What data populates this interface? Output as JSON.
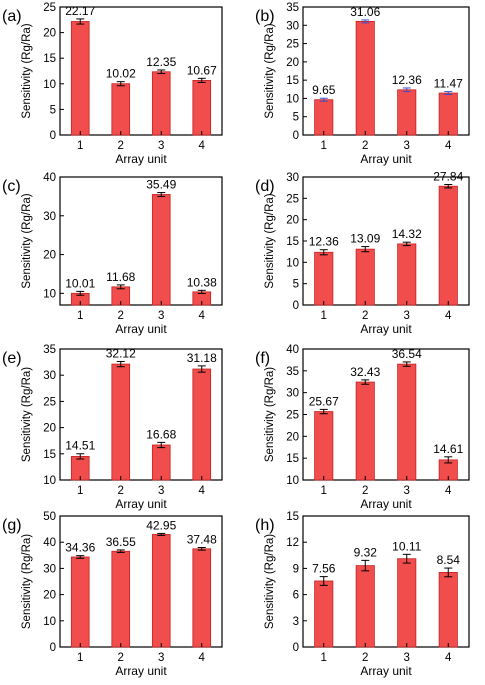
{
  "chart_data": [
    {
      "type": "bar",
      "panel_label": "(a)",
      "categories": [
        "1",
        "2",
        "3",
        "4"
      ],
      "values": [
        22.17,
        10.02,
        12.35,
        10.67
      ],
      "errors": [
        0.5,
        0.4,
        0.35,
        0.4
      ],
      "value_labels": [
        "22.17",
        "10.02",
        "12.35",
        "10.67"
      ],
      "ylim": [
        0,
        25
      ],
      "yticks": [
        0,
        5,
        10,
        15,
        20,
        25
      ],
      "xlabel": "Array unit",
      "ylabel": "Sensitivity (Rg/Ra)",
      "grid": false
    },
    {
      "type": "bar",
      "panel_label": "(b)",
      "categories": [
        "1",
        "2",
        "3",
        "4"
      ],
      "values": [
        9.65,
        31.06,
        12.36,
        11.47
      ],
      "errors": [
        0.4,
        0.4,
        0.5,
        0.4
      ],
      "value_labels": [
        "9.65",
        "31.06",
        "12.36",
        "11.47"
      ],
      "ylim": [
        0,
        35
      ],
      "yticks": [
        0,
        5,
        10,
        15,
        20,
        25,
        30,
        35
      ],
      "xlabel": "Array unit",
      "ylabel": "Sensitivity (Rg/Ra)",
      "grid": false
    },
    {
      "type": "bar",
      "panel_label": "(c)",
      "categories": [
        "1",
        "2",
        "3",
        "4"
      ],
      "values": [
        10.01,
        11.68,
        35.49,
        10.38
      ],
      "errors": [
        0.5,
        0.5,
        0.5,
        0.4
      ],
      "value_labels": [
        "10.01",
        "11.68",
        "35.49",
        "10.38"
      ],
      "ylim": [
        7,
        40
      ],
      "yticks": [
        10,
        20,
        30,
        40
      ],
      "xlabel": "Array unit",
      "ylabel": "Sensitivity (Rg/Ra)",
      "grid": false
    },
    {
      "type": "bar",
      "panel_label": "(d)",
      "categories": [
        "1",
        "2",
        "3",
        "4"
      ],
      "values": [
        12.36,
        13.09,
        14.32,
        27.84
      ],
      "errors": [
        0.6,
        0.6,
        0.4,
        0.4
      ],
      "value_labels": [
        "12.36",
        "13.09",
        "14.32",
        "27.84"
      ],
      "ylim": [
        0,
        30
      ],
      "yticks": [
        0,
        5,
        10,
        15,
        20,
        25,
        30
      ],
      "xlabel": "Array unit",
      "ylabel": "Sensitivity (Rg/Ra)",
      "grid": false
    },
    {
      "type": "bar",
      "panel_label": "(e)",
      "categories": [
        "1",
        "2",
        "3",
        "4"
      ],
      "values": [
        14.51,
        32.12,
        16.68,
        31.18
      ],
      "errors": [
        0.5,
        0.5,
        0.5,
        0.6
      ],
      "value_labels": [
        "14.51",
        "32.12",
        "16.68",
        "31.18"
      ],
      "ylim": [
        10,
        35
      ],
      "yticks": [
        10,
        15,
        20,
        25,
        30,
        35
      ],
      "xlabel": "Array unit",
      "ylabel": "Sensitivity (Rg/Ra)",
      "grid": false
    },
    {
      "type": "bar",
      "panel_label": "(f)",
      "categories": [
        "1",
        "2",
        "3",
        "4"
      ],
      "values": [
        25.67,
        32.43,
        36.54,
        14.61
      ],
      "errors": [
        0.5,
        0.5,
        0.5,
        0.7
      ],
      "value_labels": [
        "25.67",
        "32.43",
        "36.54",
        "14.61"
      ],
      "ylim": [
        10,
        40
      ],
      "yticks": [
        10,
        15,
        20,
        25,
        30,
        35,
        40
      ],
      "xlabel": "Array unit",
      "ylabel": "Sensitivity (Rg/Ra)",
      "grid": false
    },
    {
      "type": "bar",
      "panel_label": "(g)",
      "categories": [
        "1",
        "2",
        "3",
        "4"
      ],
      "values": [
        34.36,
        36.55,
        42.95,
        37.48
      ],
      "errors": [
        0.5,
        0.5,
        0.4,
        0.5
      ],
      "value_labels": [
        "34.36",
        "36.55",
        "42.95",
        "37.48"
      ],
      "ylim": [
        0,
        50
      ],
      "yticks": [
        0,
        10,
        20,
        30,
        40,
        50
      ],
      "xlabel": "Array unit",
      "ylabel": "Sensitivity (Rg/Ra)",
      "grid": false
    },
    {
      "type": "bar",
      "panel_label": "(h)",
      "categories": [
        "1",
        "2",
        "3",
        "4"
      ],
      "values": [
        7.56,
        9.32,
        10.11,
        8.54
      ],
      "errors": [
        0.5,
        0.6,
        0.5,
        0.5
      ],
      "value_labels": [
        "7.56",
        "9.32",
        "10.11",
        "8.54"
      ],
      "ylim": [
        0,
        15
      ],
      "yticks": [
        0,
        3,
        6,
        9,
        12,
        15
      ],
      "xlabel": "Array unit",
      "ylabel": "Sensitivity (Rg/Ra)",
      "grid": false
    }
  ],
  "colors": {
    "bar_fill": "#f24d4d",
    "bar_edge": "#c42020",
    "error_bar": "#000000",
    "error_bar_b": "#3a4fcf"
  }
}
